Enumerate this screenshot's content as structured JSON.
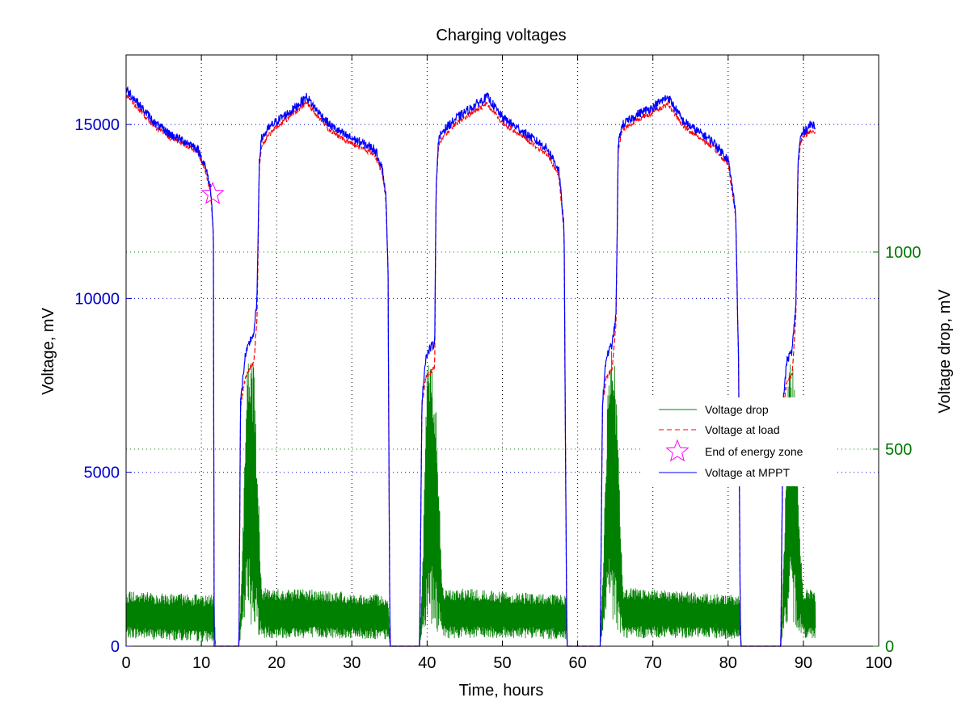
{
  "chart_data": {
    "type": "line",
    "title": "Charging voltages",
    "xlabel": "Time, hours",
    "ylabel": "Voltage, mV",
    "y2label": "Voltage drop, mV",
    "xlim": [
      0,
      100
    ],
    "ylim": [
      0,
      17000
    ],
    "y2lim": [
      0,
      1500
    ],
    "x_ticks": [
      0,
      10,
      20,
      30,
      40,
      50,
      60,
      70,
      80,
      90,
      100
    ],
    "y_ticks": [
      0,
      5000,
      10000,
      15000
    ],
    "y2_ticks": [
      0,
      500,
      1000
    ],
    "grid": true,
    "legend_position": "right",
    "colors": {
      "mppt": "#0000ff",
      "load": "#ff0000",
      "drop": "#008000",
      "marker": "#ff00ff",
      "left_axis": "#0000cc",
      "right_axis": "#007700"
    },
    "series": [
      {
        "name": "Voltage at MPPT",
        "axis": "left",
        "x": [
          0,
          0.5,
          2,
          4,
          6,
          8,
          9.5,
          10.5,
          11.2,
          11.6,
          11.7,
          11.9,
          15.0,
          15.2,
          15.8,
          16.5,
          17.0,
          17.4,
          17.7,
          18.0,
          19,
          20,
          22,
          24,
          25,
          27,
          29,
          31,
          33,
          34,
          34.5,
          34.8,
          35.0,
          35.1,
          39.0,
          39.3,
          39.8,
          40.5,
          41.0,
          41.2,
          41.5,
          42,
          44,
          46,
          48,
          50,
          52,
          54,
          56,
          57.5,
          58.2,
          58.5,
          58.6,
          63.0,
          63.3,
          63.8,
          64.6,
          65.1,
          65.4,
          65.7,
          66,
          68,
          70,
          72,
          74,
          76,
          78,
          80,
          81.0,
          81.4,
          81.6,
          81.7,
          87.0,
          87.3,
          87.8,
          88.5,
          89.0,
          89.3,
          89.6,
          90,
          91,
          91.6
        ],
        "y": [
          16000,
          15900,
          15500,
          15000,
          14700,
          14500,
          14300,
          13800,
          13200,
          12000,
          0,
          0,
          0,
          7000,
          8300,
          8800,
          9000,
          10000,
          14000,
          14600,
          14900,
          15100,
          15400,
          15800,
          15500,
          15000,
          14700,
          14500,
          14300,
          13800,
          13000,
          11000,
          2000,
          0,
          0,
          7000,
          8300,
          8600,
          8700,
          13300,
          14500,
          14800,
          15200,
          15500,
          15800,
          15200,
          14900,
          14600,
          14300,
          13700,
          12000,
          2000,
          0,
          0,
          7000,
          8300,
          8700,
          9500,
          14400,
          14800,
          15000,
          15300,
          15500,
          15800,
          15100,
          14800,
          14500,
          14000,
          12500,
          8000,
          1000,
          0,
          0,
          7000,
          8200,
          8500,
          9800,
          14000,
          14600,
          14800,
          15000,
          15000
        ]
      },
      {
        "name": "Voltage at load",
        "axis": "left",
        "x": [
          0,
          0.5,
          2,
          4,
          6,
          8,
          9.5,
          10.5,
          11.2,
          11.6,
          11.7,
          11.9,
          15.0,
          15.2,
          15.8,
          16.5,
          17.0,
          17.4,
          17.7,
          18.0,
          19,
          20,
          22,
          24,
          25,
          27,
          29,
          31,
          33,
          34,
          34.5,
          34.8,
          35.0,
          35.1,
          39.0,
          39.3,
          39.8,
          40.5,
          41.0,
          41.2,
          41.5,
          42,
          44,
          46,
          48,
          50,
          52,
          54,
          56,
          57.5,
          58.2,
          58.5,
          58.6,
          63.0,
          63.3,
          63.8,
          64.6,
          65.1,
          65.4,
          65.7,
          66,
          68,
          70,
          72,
          74,
          76,
          78,
          80,
          81.0,
          81.4,
          81.6,
          81.7,
          87.0,
          87.3,
          87.8,
          88.5,
          89.0,
          89.3,
          89.6,
          90,
          91,
          91.6
        ],
        "y": [
          15850,
          15750,
          15350,
          14900,
          14600,
          14400,
          14200,
          13700,
          13100,
          11900,
          0,
          0,
          0,
          6900,
          7700,
          8000,
          8200,
          9500,
          13800,
          14400,
          14700,
          14950,
          15250,
          15650,
          15350,
          14850,
          14550,
          14350,
          14150,
          13650,
          12900,
          10900,
          1950,
          0,
          0,
          6900,
          7700,
          7900,
          8000,
          13200,
          14350,
          14650,
          15050,
          15350,
          15600,
          15050,
          14750,
          14450,
          14150,
          13550,
          11900,
          1950,
          0,
          0,
          6900,
          7700,
          8000,
          9300,
          14250,
          14650,
          14850,
          15150,
          15350,
          15600,
          14950,
          14650,
          14350,
          13850,
          12400,
          7900,
          980,
          0,
          0,
          6900,
          7600,
          7800,
          9500,
          13850,
          14450,
          14650,
          14800,
          14800
        ]
      },
      {
        "name": "Voltage drop",
        "axis": "right",
        "x": [
          0,
          5,
          11.7,
          11.9,
          15.0,
          15.5,
          16.0,
          16.5,
          17.0,
          17.5,
          18.0,
          20,
          24,
          28,
          34.8,
          35.1,
          39.0,
          39.5,
          40.0,
          40.5,
          41.0,
          41.5,
          42,
          46,
          50,
          54,
          58.5,
          58.6,
          63.0,
          63.5,
          64.0,
          64.5,
          65.0,
          65.5,
          66,
          70,
          74,
          78,
          81.6,
          81.7,
          87.0,
          87.5,
          88.0,
          88.5,
          89.0,
          89.5,
          90,
          91.6
        ],
        "y": [
          95,
          90,
          85,
          0,
          0,
          150,
          550,
          650,
          500,
          250,
          95,
          90,
          92,
          88,
          80,
          0,
          0,
          150,
          600,
          680,
          500,
          250,
          95,
          90,
          88,
          85,
          80,
          0,
          0,
          150,
          600,
          650,
          500,
          250,
          95,
          90,
          88,
          85,
          80,
          0,
          0,
          200,
          550,
          620,
          400,
          150,
          95,
          90
        ],
        "band_low": [
          20,
          15,
          10,
          0,
          0,
          40,
          80,
          60,
          40,
          30,
          20,
          20,
          20,
          20,
          15,
          0,
          0,
          40,
          60,
          60,
          40,
          30,
          20,
          20,
          20,
          20,
          15,
          0,
          0,
          40,
          60,
          60,
          40,
          30,
          20,
          20,
          20,
          20,
          15,
          0,
          0,
          40,
          60,
          60,
          40,
          30,
          20,
          20
        ],
        "band_high": [
          140,
          135,
          130,
          0,
          0,
          280,
          700,
          780,
          700,
          450,
          150,
          145,
          145,
          140,
          130,
          0,
          0,
          280,
          750,
          780,
          700,
          450,
          150,
          145,
          140,
          135,
          130,
          0,
          0,
          280,
          720,
          780,
          700,
          450,
          150,
          145,
          140,
          135,
          130,
          0,
          0,
          300,
          720,
          740,
          600,
          300,
          150,
          140
        ]
      }
    ],
    "markers": [
      {
        "name": "End of energy zone",
        "x": 11.5,
        "y": 13000,
        "symbol": "star"
      }
    ],
    "legend": [
      "Voltage drop",
      "Voltage at load",
      "End of energy zone",
      "Voltage at MPPT"
    ]
  }
}
